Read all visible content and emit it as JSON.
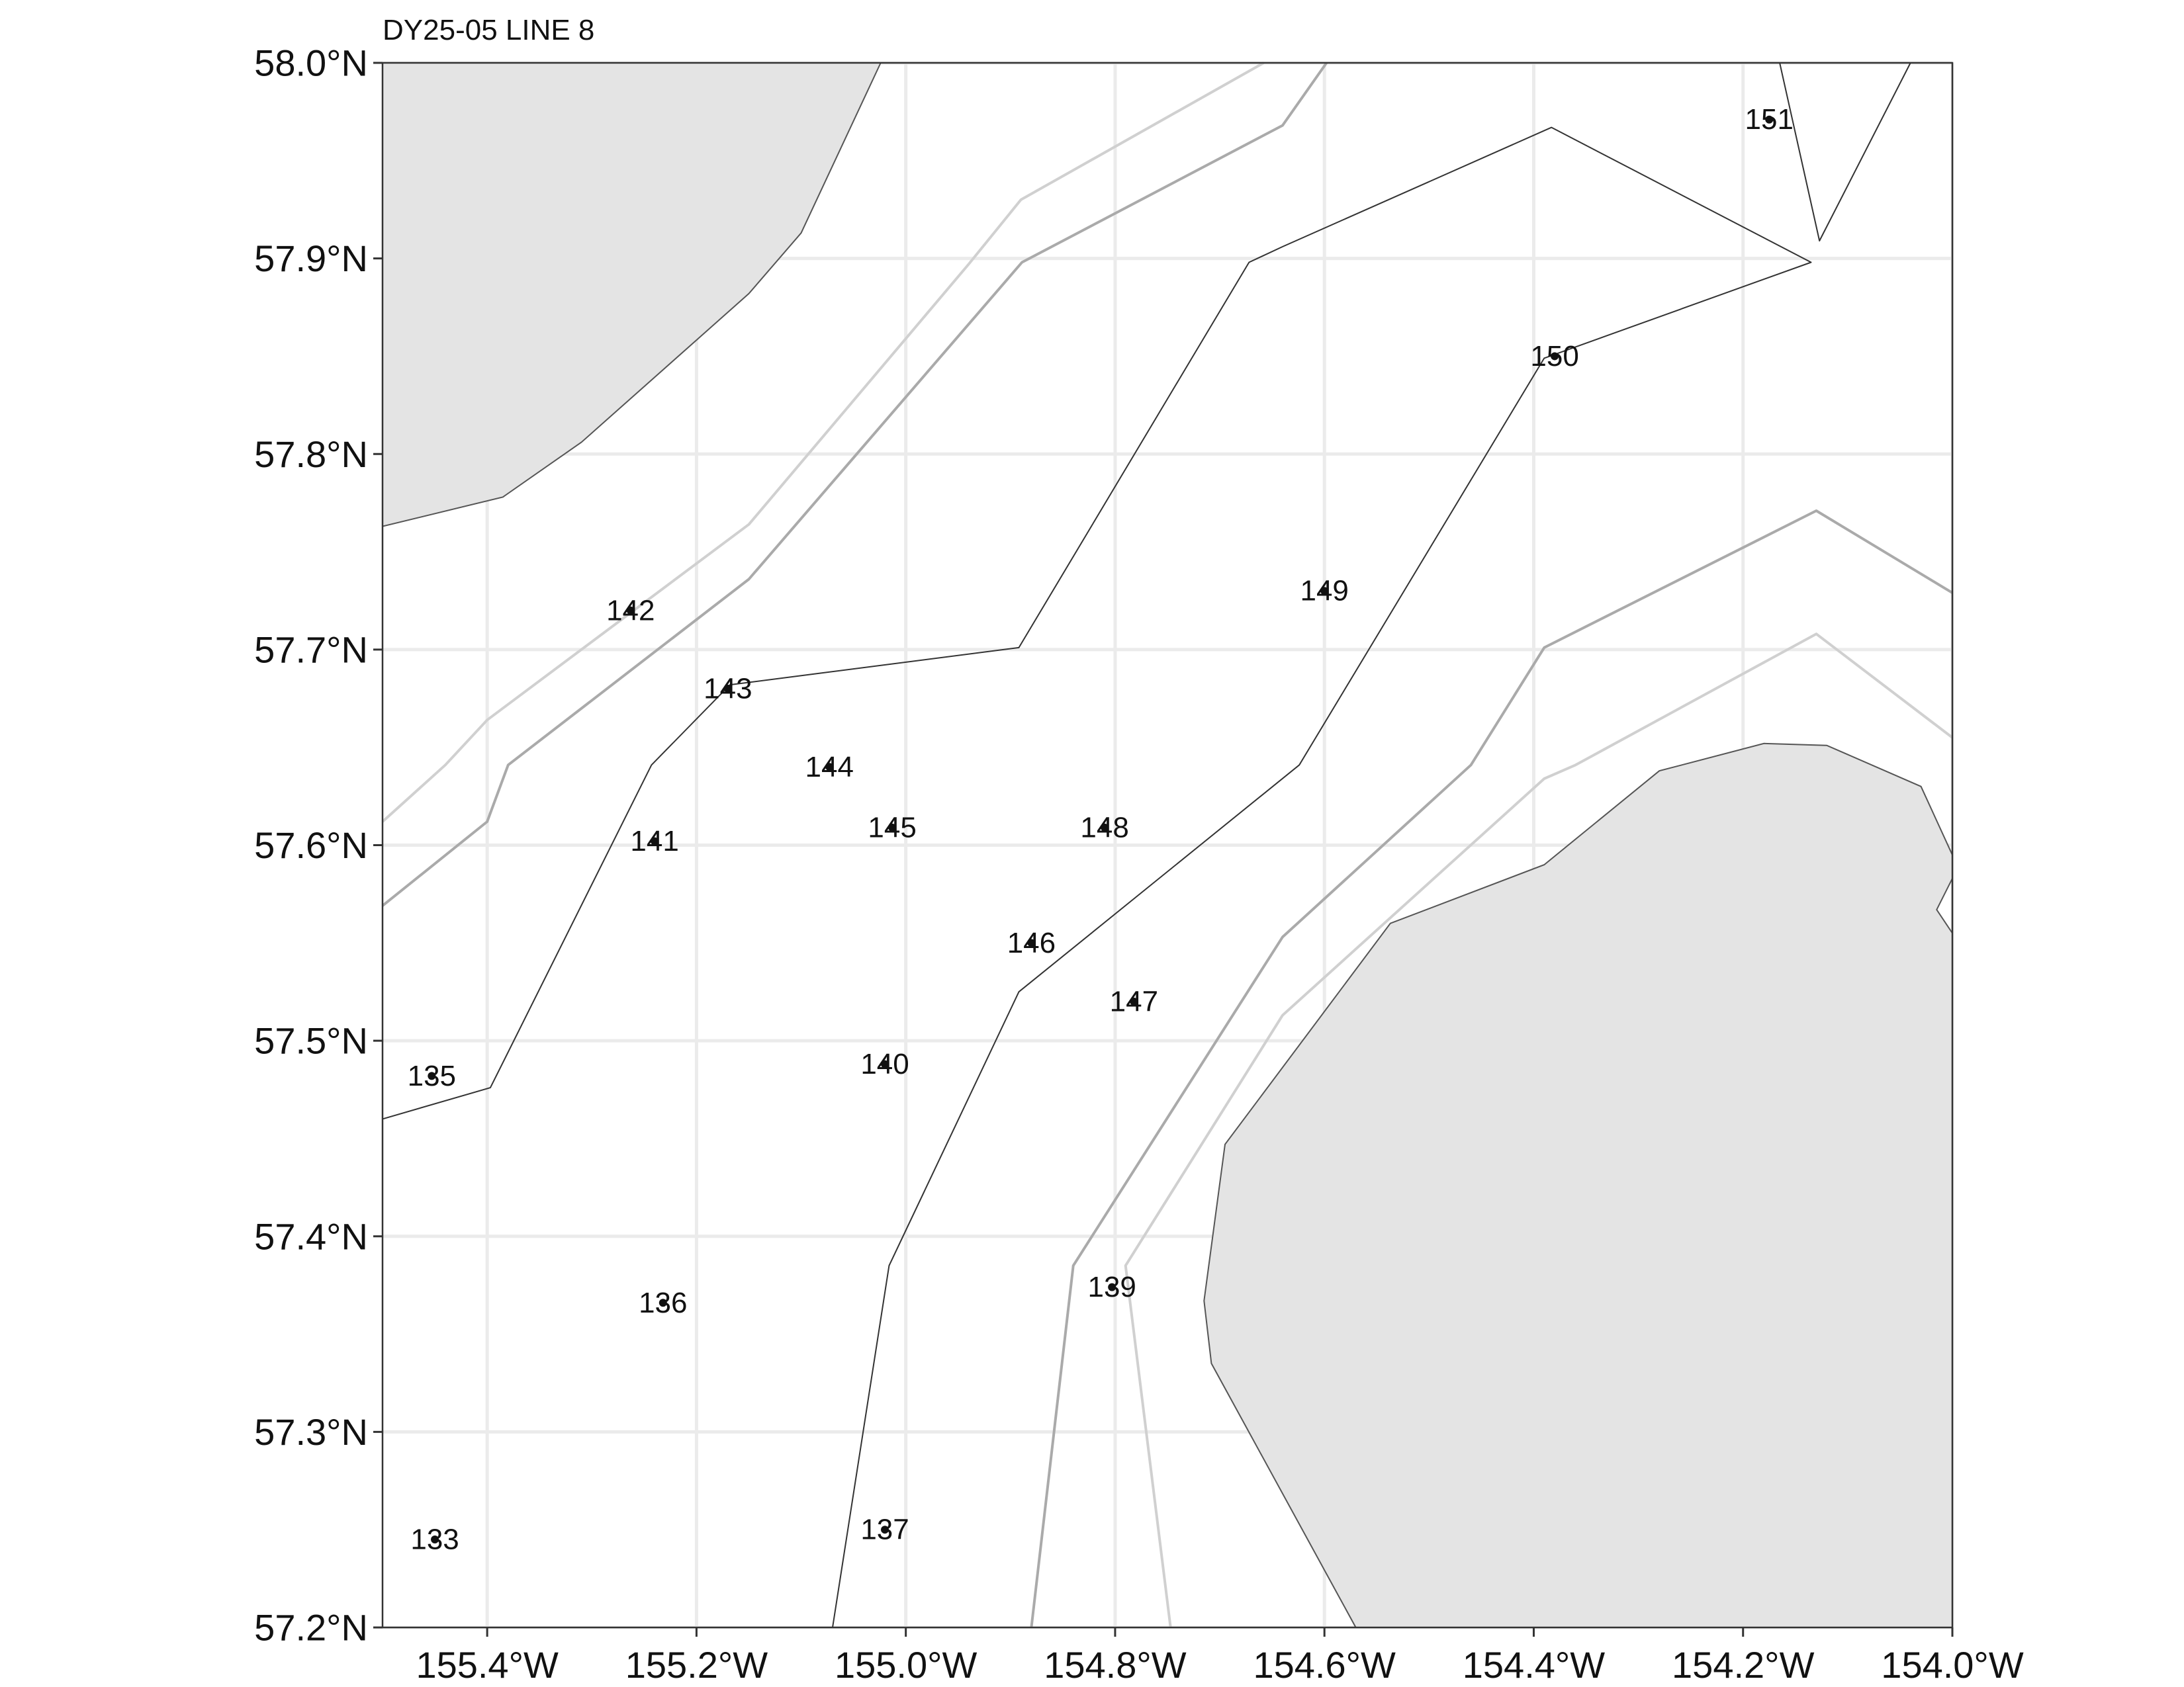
{
  "title": "DY25-05 LINE 8",
  "colors": {
    "land": "#e4e4e4",
    "land_outline": "#555555",
    "grid": "#ebebeb",
    "contour_dark": "#333333",
    "contour_mid": "#aaaaaa",
    "contour_light": "#d0d0d0"
  },
  "map": {
    "lon_range": [
      -155.5,
      -154.0
    ],
    "lat_range": [
      57.2,
      58.0
    ],
    "x_ticks": [
      {
        "value": -155.4,
        "label": "155.4°W"
      },
      {
        "value": -155.2,
        "label": "155.2°W"
      },
      {
        "value": -155.0,
        "label": "155.0°W"
      },
      {
        "value": -154.8,
        "label": "154.8°W"
      },
      {
        "value": -154.6,
        "label": "154.6°W"
      },
      {
        "value": -154.4,
        "label": "154.4°W"
      },
      {
        "value": -154.2,
        "label": "154.2°W"
      },
      {
        "value": -154.0,
        "label": "154.0°W"
      }
    ],
    "y_ticks": [
      {
        "value": 57.2,
        "label": "57.2°N"
      },
      {
        "value": 57.3,
        "label": "57.3°N"
      },
      {
        "value": 57.4,
        "label": "57.4°N"
      },
      {
        "value": 57.5,
        "label": "57.5°N"
      },
      {
        "value": 57.6,
        "label": "57.6°N"
      },
      {
        "value": 57.7,
        "label": "57.7°N"
      },
      {
        "value": 57.8,
        "label": "57.8°N"
      },
      {
        "value": 57.9,
        "label": "57.9°N"
      },
      {
        "value": 58.0,
        "label": "58.0°N"
      }
    ],
    "stations": [
      {
        "id": "133",
        "lon": -155.45,
        "lat": 57.245
      },
      {
        "id": "135",
        "lon": -155.453,
        "lat": 57.482
      },
      {
        "id": "136",
        "lon": -155.232,
        "lat": 57.366
      },
      {
        "id": "137",
        "lon": -155.02,
        "lat": 57.25
      },
      {
        "id": "139",
        "lon": -154.803,
        "lat": 57.374
      },
      {
        "id": "140",
        "lon": -155.02,
        "lat": 57.488
      },
      {
        "id": "141",
        "lon": -155.24,
        "lat": 57.602
      },
      {
        "id": "142",
        "lon": -155.263,
        "lat": 57.72
      },
      {
        "id": "143",
        "lon": -155.17,
        "lat": 57.68
      },
      {
        "id": "144",
        "lon": -155.073,
        "lat": 57.64
      },
      {
        "id": "145",
        "lon": -155.013,
        "lat": 57.609
      },
      {
        "id": "146",
        "lon": -154.88,
        "lat": 57.55
      },
      {
        "id": "147",
        "lon": -154.782,
        "lat": 57.52
      },
      {
        "id": "148",
        "lon": -154.81,
        "lat": 57.609
      },
      {
        "id": "149",
        "lon": -154.6,
        "lat": 57.73
      },
      {
        "id": "150",
        "lon": -154.38,
        "lat": 57.85
      },
      {
        "id": "151",
        "lon": -154.175,
        "lat": 57.971
      }
    ],
    "land_polygons": [
      [
        [
          -155.5,
          58.0
        ],
        [
          -155.024,
          58.0
        ],
        [
          -155.1,
          57.913
        ],
        [
          -155.15,
          57.882
        ],
        [
          -155.31,
          57.806
        ],
        [
          -155.385,
          57.778
        ],
        [
          -155.5,
          57.763
        ]
      ],
      [
        [
          -154.57,
          57.2
        ],
        [
          -154.708,
          57.335
        ],
        [
          -154.715,
          57.367
        ],
        [
          -154.695,
          57.447
        ],
        [
          -154.537,
          57.56
        ],
        [
          -154.39,
          57.59
        ],
        [
          -154.28,
          57.638
        ],
        [
          -154.18,
          57.652
        ],
        [
          -154.12,
          57.651
        ],
        [
          -154.03,
          57.63
        ],
        [
          -154.0,
          57.595
        ],
        [
          -154.0,
          57.583
        ],
        [
          -154.015,
          57.567
        ],
        [
          -154.0,
          57.555
        ],
        [
          -154.0,
          57.2
        ]
      ]
    ],
    "contours": [
      {
        "shade": "dark",
        "points": [
          [
            -155.5,
            57.46
          ],
          [
            -155.397,
            57.476
          ],
          [
            -155.243,
            57.641
          ],
          [
            -155.168,
            57.682
          ],
          [
            -154.892,
            57.701
          ],
          [
            -154.672,
            57.898
          ],
          [
            -154.64,
            57.906
          ],
          [
            -154.383,
            57.967
          ],
          [
            -154.135,
            57.898
          ],
          [
            -154.39,
            57.849
          ],
          [
            -154.624,
            57.641
          ],
          [
            -154.892,
            57.525
          ],
          [
            -155.016,
            57.385
          ],
          [
            -155.07,
            57.2
          ]
        ]
      },
      {
        "shade": "dark",
        "points": [
          [
            -154.165,
            58.0
          ],
          [
            -154.127,
            57.909
          ],
          [
            -154.04,
            58.0
          ]
        ]
      },
      {
        "shade": "mid",
        "points": [
          [
            -155.5,
            57.569
          ],
          [
            -155.4,
            57.612
          ],
          [
            -155.38,
            57.641
          ],
          [
            -155.15,
            57.736
          ],
          [
            -154.889,
            57.898
          ],
          [
            -154.64,
            57.968
          ],
          [
            -154.598,
            58.0
          ]
        ]
      },
      {
        "shade": "mid",
        "points": [
          [
            -154.88,
            57.2
          ],
          [
            -154.84,
            57.385
          ],
          [
            -154.64,
            57.553
          ],
          [
            -154.46,
            57.641
          ],
          [
            -154.39,
            57.701
          ],
          [
            -154.13,
            57.771
          ],
          [
            -154.0,
            57.729
          ]
        ]
      },
      {
        "shade": "light",
        "points": [
          [
            -155.5,
            57.612
          ],
          [
            -155.44,
            57.641
          ],
          [
            -155.4,
            57.664
          ],
          [
            -155.15,
            57.764
          ],
          [
            -154.94,
            57.897
          ],
          [
            -154.89,
            57.93
          ],
          [
            -154.658,
            58.0
          ]
        ]
      },
      {
        "shade": "light",
        "points": [
          [
            -154.747,
            57.2
          ],
          [
            -154.79,
            57.385
          ],
          [
            -154.64,
            57.513
          ],
          [
            -154.39,
            57.634
          ],
          [
            -154.36,
            57.641
          ],
          [
            -154.13,
            57.708
          ],
          [
            -154.0,
            57.655
          ]
        ]
      }
    ]
  }
}
